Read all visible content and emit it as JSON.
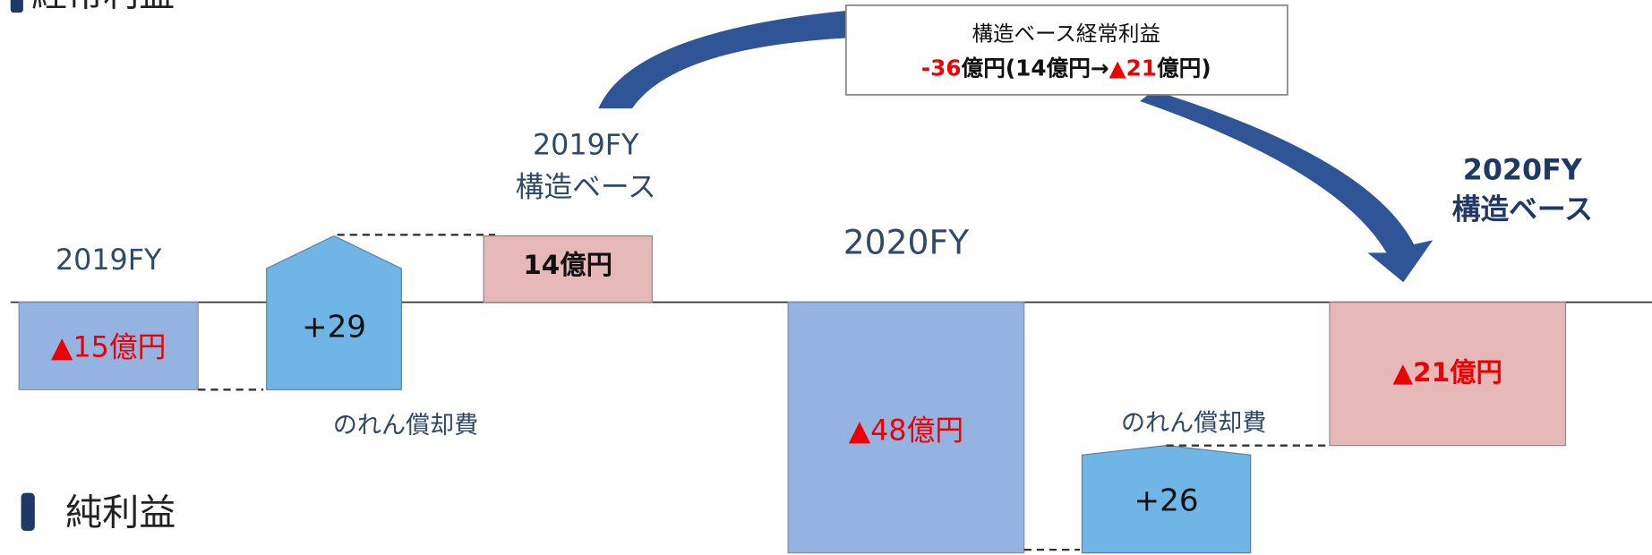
{
  "sections": {
    "ordinary_profit": "経常利益",
    "net_profit": "純利益"
  },
  "labels": {
    "fy2019": "2019FY",
    "fy2019_struct_year": "2019FY",
    "fy2019_struct": "構造ベース",
    "fy2020": "2020FY",
    "fy2020_struct_year": "2020FY",
    "fy2020_struct": "構造ベース",
    "goodwill_1": "のれん償却費",
    "goodwill_2": "のれん償却費"
  },
  "bars": [
    {
      "label": "▲15億円"
    },
    {
      "label": "+29"
    },
    {
      "label": "14億円"
    },
    {
      "label": "▲48億円"
    },
    {
      "label": "+26"
    },
    {
      "label": "▲21億円"
    }
  ],
  "callout": {
    "title": "構造ベース経常利益",
    "value_parts": [
      "-36",
      "億円(14億円→",
      "▲21",
      "億円)"
    ]
  }
}
